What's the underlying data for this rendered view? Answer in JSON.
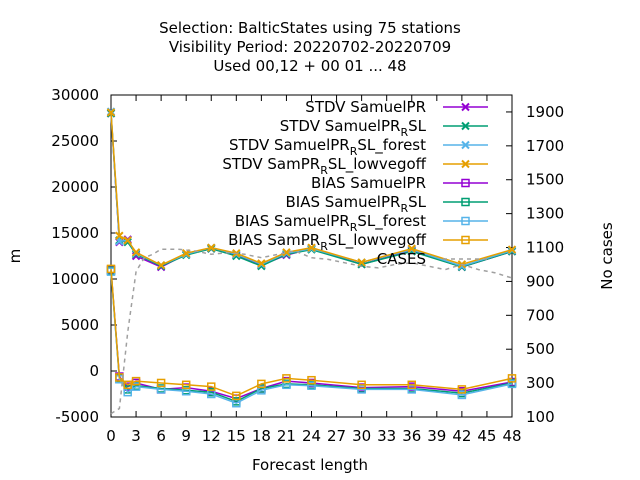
{
  "chart_data": {
    "type": "line",
    "title_lines": [
      "Selection: BalticStates using    75 stations",
      "Visibility   Period: 20220702-20220709",
      "Used  00,12 + 00 01 ... 48"
    ],
    "xlabel": "Forecast length",
    "ylabel": "m",
    "y2label": "No cases",
    "xlim": [
      0,
      48
    ],
    "ylim": [
      -5000,
      30000
    ],
    "y2lim": [
      100,
      2000
    ],
    "xticks": [
      "0",
      "3",
      "6",
      "9",
      "12",
      "15",
      "18",
      "21",
      "24",
      "27",
      "30",
      "33",
      "36",
      "39",
      "42",
      "45",
      "48"
    ],
    "yticks": [
      "-5000",
      "0",
      "5000",
      "10000",
      "15000",
      "20000",
      "25000",
      "30000"
    ],
    "y2ticks": [
      "100",
      "300",
      "500",
      "700",
      "900",
      "1100",
      "1300",
      "1500",
      "1700",
      "1900"
    ],
    "legend_position": "top-right",
    "series": [
      {
        "name": "STDV SamuelPR",
        "label_main": "STDV SamuelPR",
        "label_sub": "",
        "label_tail": "",
        "color": "#9400d3",
        "marker": "x",
        "axis": "y1",
        "x": [
          0,
          1,
          2,
          3,
          6,
          9,
          12,
          15,
          18,
          21,
          24,
          30,
          36,
          42,
          48
        ],
        "y": [
          28000,
          14000,
          14300,
          12500,
          11300,
          12700,
          13300,
          12600,
          11500,
          12600,
          13300,
          11600,
          13100,
          11300,
          13000
        ]
      },
      {
        "name": "STDV SamuelPR_RSL",
        "label_main": "STDV SamuelPR",
        "label_sub": "R",
        "label_tail": "SL",
        "color": "#009e73",
        "marker": "x",
        "axis": "y1",
        "x": [
          0,
          1,
          2,
          3,
          6,
          9,
          12,
          15,
          18,
          21,
          24,
          30,
          36,
          42,
          48
        ],
        "y": [
          28000,
          14200,
          14000,
          12700,
          11400,
          12600,
          13300,
          12500,
          11400,
          12700,
          13200,
          11600,
          13000,
          11300,
          13000
        ]
      },
      {
        "name": "STDV SamuelPR_RSL_forest",
        "label_main": "STDV SamuelPR",
        "label_sub": "R",
        "label_tail": "SL_forest",
        "color": "#56b4e9",
        "marker": "x",
        "axis": "y1",
        "x": [
          0,
          1,
          2,
          3,
          6,
          9,
          12,
          15,
          18,
          21,
          24,
          30,
          36,
          42,
          48
        ],
        "y": [
          28200,
          14100,
          14200,
          12800,
          11500,
          12700,
          13400,
          12700,
          11600,
          12800,
          13300,
          11800,
          13200,
          11400,
          13100
        ]
      },
      {
        "name": "STDV SamPR_RSL_lowvegoff",
        "label_main": "STDV SamPR",
        "label_sub": "R",
        "label_tail": "SL_lowvegoff",
        "color": "#e69f00",
        "marker": "x",
        "axis": "y1",
        "x": [
          0,
          1,
          2,
          3,
          6,
          9,
          12,
          15,
          18,
          21,
          24,
          30,
          36,
          42,
          48
        ],
        "y": [
          28100,
          14700,
          14200,
          12900,
          11500,
          12800,
          13400,
          12800,
          11700,
          12900,
          13400,
          11800,
          13300,
          11600,
          13200
        ]
      },
      {
        "name": "BIAS SamuelPR",
        "label_main": "BIAS SamuelPR",
        "label_sub": "",
        "label_tail": "",
        "color": "#9400d3",
        "marker": "s",
        "axis": "y1",
        "x": [
          0,
          1,
          2,
          3,
          6,
          9,
          12,
          15,
          18,
          21,
          24,
          30,
          36,
          42,
          48
        ],
        "y": [
          11000,
          -600,
          -1700,
          -1300,
          -2000,
          -1800,
          -2200,
          -3000,
          -1900,
          -1100,
          -1300,
          -1800,
          -1700,
          -2200,
          -1200
        ]
      },
      {
        "name": "BIAS SamuelPR_RSL",
        "label_main": "BIAS SamuelPR",
        "label_sub": "R",
        "label_tail": "SL",
        "color": "#009e73",
        "marker": "s",
        "axis": "y1",
        "x": [
          0,
          1,
          2,
          3,
          6,
          9,
          12,
          15,
          18,
          21,
          24,
          30,
          36,
          42,
          48
        ],
        "y": [
          10900,
          -800,
          -2000,
          -1600,
          -1900,
          -2100,
          -2300,
          -3300,
          -1900,
          -1400,
          -1500,
          -1900,
          -1900,
          -2400,
          -1300
        ]
      },
      {
        "name": "BIAS SamuelPR_RSL_forest",
        "label_main": "BIAS SamuelPR",
        "label_sub": "R",
        "label_tail": "SL_forest",
        "color": "#56b4e9",
        "marker": "s",
        "axis": "y1",
        "x": [
          0,
          1,
          2,
          3,
          6,
          9,
          12,
          15,
          18,
          21,
          24,
          30,
          36,
          42,
          48
        ],
        "y": [
          10800,
          -900,
          -2300,
          -1700,
          -2000,
          -2200,
          -2500,
          -3500,
          -2100,
          -1500,
          -1600,
          -2000,
          -2000,
          -2600,
          -1400
        ]
      },
      {
        "name": "BIAS SamPR_RSL_lowvegoff",
        "label_main": "BIAS SamPR",
        "label_sub": "R",
        "label_tail": "SL_lowvegoff",
        "color": "#e69f00",
        "marker": "s",
        "axis": "y1",
        "x": [
          0,
          1,
          2,
          3,
          6,
          9,
          12,
          15,
          18,
          21,
          24,
          30,
          36,
          42,
          48
        ],
        "y": [
          11100,
          -700,
          -1500,
          -1100,
          -1300,
          -1500,
          -1700,
          -2700,
          -1400,
          -800,
          -1000,
          -1500,
          -1500,
          -2000,
          -800
        ]
      },
      {
        "name": "CASES",
        "label_main": "CASES",
        "label_sub": "",
        "label_tail": "",
        "color": "#a0a0a0",
        "marker": "none",
        "dashed": true,
        "axis": "y2",
        "x": [
          0,
          1,
          2,
          3,
          4,
          5,
          6,
          8,
          10,
          12,
          14,
          16,
          18,
          20,
          22,
          24,
          26,
          28,
          30,
          32,
          34,
          36,
          38,
          40,
          42,
          44,
          46,
          48
        ],
        "y": [
          120,
          150,
          600,
          960,
          1040,
          1060,
          1090,
          1090,
          1080,
          1060,
          1070,
          1060,
          1040,
          1060,
          1080,
          1040,
          1030,
          1010,
          990,
          980,
          1000,
          1010,
          990,
          970,
          1000,
          970,
          950,
          920
        ]
      }
    ]
  }
}
